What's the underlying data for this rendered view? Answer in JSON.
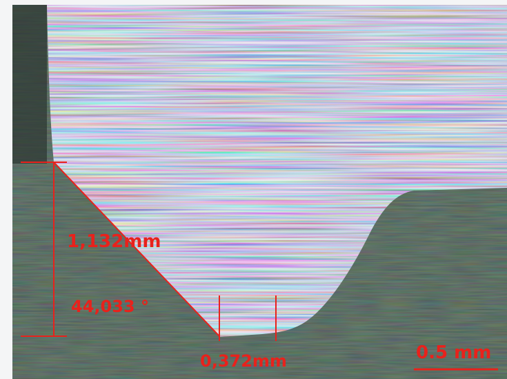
{
  "annotations": {
    "diagonal_length": "1,132mm",
    "angle": "44,033 °",
    "width": "0,372mm",
    "scale_bar": "0.5 mm"
  }
}
